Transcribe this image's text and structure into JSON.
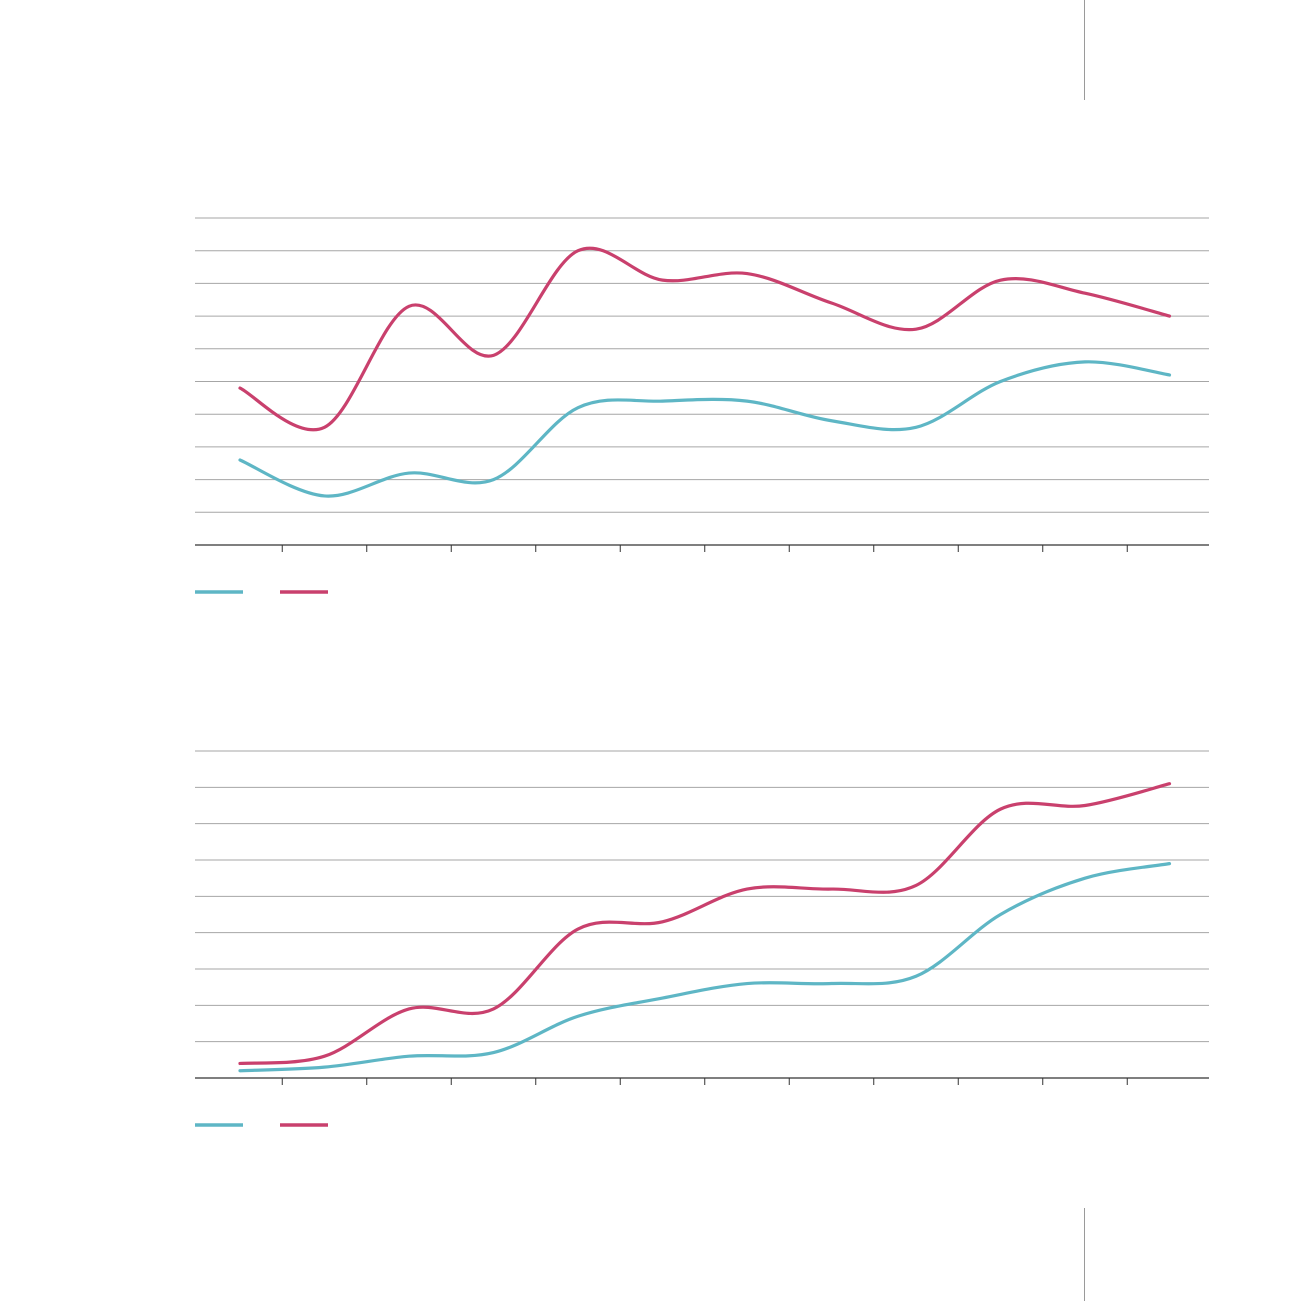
{
  "colors": {
    "series_a": "#5eb6c5",
    "series_b": "#c9406d",
    "grid": "#a6a6a6",
    "axis": "#333333"
  },
  "chart_data": [
    {
      "type": "line",
      "title": "",
      "xlabel": "",
      "ylabel": "",
      "grid": true,
      "legend": "bottom-left",
      "x": [
        1,
        2,
        3,
        4,
        5,
        6,
        7,
        8,
        9,
        10,
        11,
        12
      ],
      "ylim": [
        0,
        10
      ],
      "series": [
        {
          "color": "#5eb6c5",
          "values": [
            2.6,
            1.5,
            2.2,
            2.0,
            4.2,
            4.4,
            4.4,
            3.8,
            3.6,
            5.0,
            5.6,
            5.2
          ]
        },
        {
          "color": "#c9406d",
          "values": [
            4.8,
            3.6,
            7.3,
            5.8,
            9.0,
            8.1,
            8.3,
            7.4,
            6.6,
            8.1,
            7.7,
            7.0
          ]
        }
      ]
    },
    {
      "type": "line",
      "title": "",
      "xlabel": "",
      "ylabel": "",
      "grid": true,
      "legend": "bottom-left",
      "x": [
        1,
        2,
        3,
        4,
        5,
        6,
        7,
        8,
        9,
        10,
        11,
        12
      ],
      "ylim": [
        0,
        9
      ],
      "series": [
        {
          "color": "#5eb6c5",
          "values": [
            0.2,
            0.3,
            0.6,
            0.7,
            1.7,
            2.2,
            2.6,
            2.6,
            2.8,
            4.5,
            5.5,
            5.9
          ]
        },
        {
          "color": "#c9406d",
          "values": [
            0.4,
            0.6,
            1.9,
            1.9,
            4.1,
            4.3,
            5.2,
            5.2,
            5.3,
            7.4,
            7.5,
            8.1
          ]
        }
      ]
    }
  ]
}
